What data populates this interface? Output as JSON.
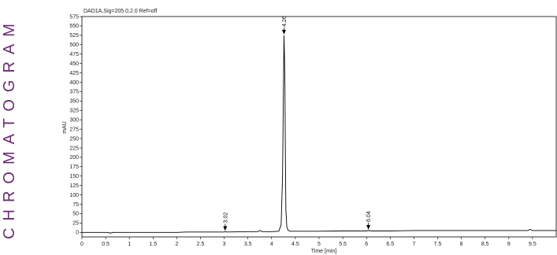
{
  "page": {
    "side_title": "CHROMATOGRAM",
    "side_title_color": "#6a2b73"
  },
  "chart_data": {
    "type": "line",
    "header": "DAD1A,Sig=205.0,2.0  Ref=off",
    "xlabel": "Time [min]",
    "ylabel": "mAU",
    "xlim": [
      0,
      10
    ],
    "ylim": [
      -12,
      575
    ],
    "x_ticks": [
      0,
      0.5,
      1,
      1.5,
      2,
      2.5,
      3,
      3.5,
      4,
      4.5,
      5,
      5.5,
      6,
      6.5,
      7,
      7.5,
      8,
      8.5,
      9,
      9.5
    ],
    "x_tick_labels": [
      "0",
      "0.5",
      "1",
      "1.5",
      "2",
      "2.5",
      "3",
      "3.5",
      "4",
      "4.5",
      "5",
      "5.5",
      "6",
      "6.5",
      "7",
      "7.5",
      "8",
      "8.5",
      "9",
      "9.5"
    ],
    "y_ticks": [
      0,
      25,
      50,
      75,
      100,
      125,
      150,
      175,
      200,
      225,
      250,
      275,
      300,
      325,
      350,
      375,
      400,
      425,
      450,
      475,
      500,
      525,
      550,
      575
    ],
    "y_tick_labels": [
      "0",
      "25",
      "50",
      "75",
      "100",
      "125",
      "150",
      "175",
      "200",
      "225",
      "250",
      "275",
      "300",
      "325",
      "350",
      "375",
      "400",
      "425",
      "450",
      "475",
      "500",
      "525",
      "550",
      "575"
    ],
    "grid": false,
    "line_color": "#000000",
    "series": [
      {
        "x": [
          0,
          0.3,
          0.55,
          0.6,
          0.65,
          0.75,
          1.0,
          1.5,
          2.0,
          2.2,
          2.5,
          3.0,
          3.02,
          3.05,
          3.5,
          3.7,
          3.75,
          3.8,
          4.0,
          4.15,
          4.2,
          4.23,
          4.25,
          4.26,
          4.27,
          4.28,
          4.29,
          4.3,
          4.32,
          4.35,
          4.4,
          4.5,
          5.0,
          5.5,
          6.0,
          6.04,
          6.1,
          6.5,
          7.0,
          7.5,
          8.0,
          8.5,
          9.0,
          9.4,
          9.45,
          9.5,
          10.0
        ],
        "y": [
          0,
          0,
          0,
          -2,
          0,
          0,
          0,
          0,
          0,
          1,
          1,
          1,
          2,
          1,
          2,
          2,
          5,
          2,
          2,
          3,
          20,
          150,
          400,
          525,
          470,
          390,
          200,
          60,
          15,
          5,
          3,
          3,
          3,
          4,
          4,
          5,
          4,
          4,
          5,
          5,
          5,
          5,
          5,
          5,
          8,
          5,
          5
        ]
      }
    ],
    "peaks": [
      {
        "time": 3.02,
        "label": "3.02"
      },
      {
        "time": 4.26,
        "label": "4.26"
      },
      {
        "time": 6.04,
        "label": "6.04"
      }
    ]
  }
}
